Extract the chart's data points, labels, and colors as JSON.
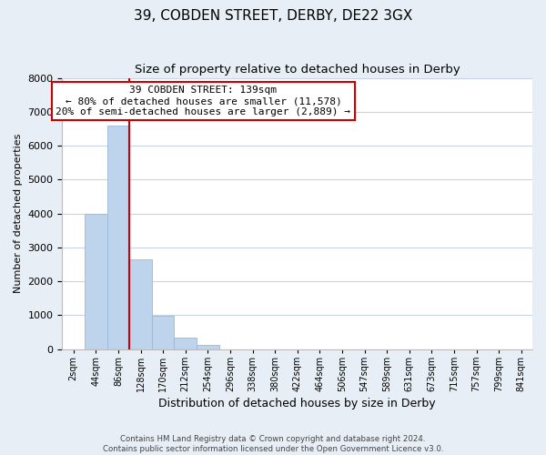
{
  "title": "39, COBDEN STREET, DERBY, DE22 3GX",
  "subtitle": "Size of property relative to detached houses in Derby",
  "xlabel": "Distribution of detached houses by size in Derby",
  "ylabel": "Number of detached properties",
  "bar_labels": [
    "2sqm",
    "44sqm",
    "86sqm",
    "128sqm",
    "170sqm",
    "212sqm",
    "254sqm",
    "296sqm",
    "338sqm",
    "380sqm",
    "422sqm",
    "464sqm",
    "506sqm",
    "547sqm",
    "589sqm",
    "631sqm",
    "673sqm",
    "715sqm",
    "757sqm",
    "799sqm",
    "841sqm"
  ],
  "bar_values": [
    0,
    4000,
    6600,
    2650,
    970,
    330,
    120,
    0,
    0,
    0,
    0,
    0,
    0,
    0,
    0,
    0,
    0,
    0,
    0,
    0,
    0
  ],
  "bar_color": "#bdd4ec",
  "bar_edge_color": "#9ab8d8",
  "annotation_title": "39 COBDEN STREET: 139sqm",
  "annotation_line1": "← 80% of detached houses are smaller (11,578)",
  "annotation_line2": "20% of semi-detached houses are larger (2,889) →",
  "annotation_box_color": "#ffffff",
  "annotation_box_edge_color": "#cc0000",
  "vline_color": "#cc0000",
  "ylim": [
    0,
    8000
  ],
  "yticks": [
    0,
    1000,
    2000,
    3000,
    4000,
    5000,
    6000,
    7000,
    8000
  ],
  "footer_line1": "Contains HM Land Registry data © Crown copyright and database right 2024.",
  "footer_line2": "Contains public sector information licensed under the Open Government Licence v3.0.",
  "bg_color": "#e8eef5",
  "plot_bg_color": "#ffffff",
  "grid_color": "#c8d4e4"
}
